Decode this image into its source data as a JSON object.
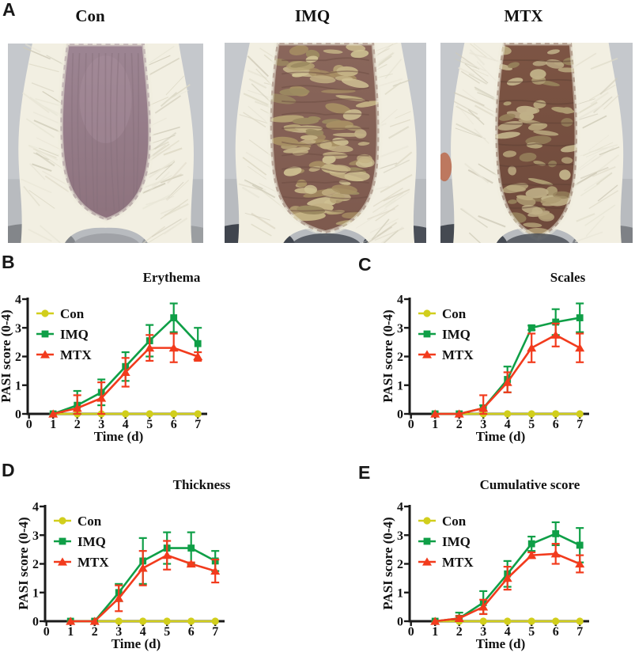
{
  "figure": {
    "panelA": {
      "label": "A",
      "photos": [
        {
          "title": "Con",
          "variant": "con"
        },
        {
          "title": "IMQ",
          "variant": "imq"
        },
        {
          "title": "MTX",
          "variant": "mtx"
        }
      ]
    }
  },
  "colors": {
    "con": "#d1ce1c",
    "imq": "#0f9f47",
    "mtx": "#f23b1d",
    "axis": "#1a1a1a",
    "text": "#111111"
  },
  "chart_data": [
    {
      "panel_label": "B",
      "type": "line",
      "title": "Erythema",
      "xlabel": "Time (d)",
      "ylabel": "PASI score (0-4)",
      "xlim": [
        0,
        7.5
      ],
      "ylim": [
        0,
        4
      ],
      "xticks": [
        0,
        1,
        2,
        3,
        4,
        5,
        6,
        7
      ],
      "yticks": [
        0,
        1,
        2,
        3,
        4
      ],
      "x": [
        1,
        2,
        3,
        4,
        5,
        6,
        7
      ],
      "legend_position": "top-left",
      "grid": false,
      "series": [
        {
          "name": "Con",
          "marker": "circle",
          "color": "#d1ce1c",
          "values": [
            0,
            0,
            0,
            0,
            0,
            0,
            0
          ],
          "errors": [
            0,
            0,
            0,
            0,
            0,
            0,
            0
          ]
        },
        {
          "name": "IMQ",
          "marker": "square",
          "color": "#0f9f47",
          "values": [
            0,
            0.3,
            0.75,
            1.65,
            2.55,
            3.35,
            2.45
          ],
          "errors": [
            0,
            0.5,
            0.45,
            0.5,
            0.55,
            0.5,
            0.55
          ]
        },
        {
          "name": "MTX",
          "marker": "triangle",
          "color": "#f23b1d",
          "values": [
            0,
            0.2,
            0.55,
            1.45,
            2.3,
            2.3,
            2.0
          ],
          "errors": [
            0,
            0.45,
            0.55,
            0.5,
            0.45,
            0.5,
            0.15
          ]
        }
      ]
    },
    {
      "panel_label": "C",
      "type": "line",
      "title": "Scales",
      "xlabel": "Time (d)",
      "ylabel": "PASI score (0-4)",
      "xlim": [
        0,
        7.5
      ],
      "ylim": [
        0,
        4
      ],
      "xticks": [
        0,
        1,
        2,
        3,
        4,
        5,
        6,
        7
      ],
      "yticks": [
        0,
        1,
        2,
        3,
        4
      ],
      "x": [
        1,
        2,
        3,
        4,
        5,
        6,
        7
      ],
      "legend_position": "top-left",
      "grid": false,
      "series": [
        {
          "name": "Con",
          "marker": "circle",
          "color": "#d1ce1c",
          "values": [
            0,
            0,
            0,
            0,
            0,
            0,
            0
          ],
          "errors": [
            0,
            0,
            0,
            0,
            0,
            0,
            0
          ]
        },
        {
          "name": "IMQ",
          "marker": "square",
          "color": "#0f9f47",
          "values": [
            0,
            0,
            0.2,
            1.2,
            3.0,
            3.2,
            3.35
          ],
          "errors": [
            0,
            0,
            0.1,
            0.45,
            0.08,
            0.45,
            0.5
          ]
        },
        {
          "name": "MTX",
          "marker": "triangle",
          "color": "#f23b1d",
          "values": [
            0,
            0,
            0.2,
            1.1,
            2.3,
            2.75,
            2.3
          ],
          "errors": [
            0,
            0,
            0.45,
            0.35,
            0.5,
            0.4,
            0.5
          ]
        }
      ]
    },
    {
      "panel_label": "D",
      "type": "line",
      "title": "Thickness",
      "xlabel": "Time (d)",
      "ylabel": "PASI score (0-4)",
      "xlim": [
        0,
        7.5
      ],
      "ylim": [
        0,
        4
      ],
      "xticks": [
        0,
        1,
        2,
        3,
        4,
        5,
        6,
        7
      ],
      "yticks": [
        0,
        1,
        2,
        3,
        4
      ],
      "x": [
        1,
        2,
        3,
        4,
        5,
        6,
        7
      ],
      "legend_position": "top-left",
      "grid": false,
      "series": [
        {
          "name": "Con",
          "marker": "circle",
          "color": "#d1ce1c",
          "values": [
            0,
            0,
            0,
            0,
            0,
            0,
            0
          ],
          "errors": [
            0,
            0,
            0,
            0,
            0,
            0,
            0
          ]
        },
        {
          "name": "IMQ",
          "marker": "square",
          "color": "#0f9f47",
          "values": [
            0,
            0,
            1.0,
            2.1,
            2.55,
            2.55,
            2.1
          ],
          "errors": [
            0,
            0,
            0.3,
            0.8,
            0.55,
            0.55,
            0.35
          ]
        },
        {
          "name": "MTX",
          "marker": "triangle",
          "color": "#f23b1d",
          "values": [
            0,
            0,
            0.8,
            1.85,
            2.3,
            2.0,
            1.75
          ],
          "errors": [
            0,
            0,
            0.45,
            0.6,
            0.5,
            0.05,
            0.4
          ]
        }
      ]
    },
    {
      "panel_label": "E",
      "type": "line",
      "title": "Cumulative score",
      "xlabel": "Time (d)",
      "ylabel": "PASI score (0-4)",
      "xlim": [
        0,
        7.5
      ],
      "ylim": [
        0,
        4
      ],
      "xticks": [
        0,
        1,
        2,
        3,
        4,
        5,
        6,
        7
      ],
      "yticks": [
        0,
        1,
        2,
        3,
        4
      ],
      "x": [
        1,
        2,
        3,
        4,
        5,
        6,
        7
      ],
      "legend_position": "top-left",
      "grid": false,
      "series": [
        {
          "name": "Con",
          "marker": "circle",
          "color": "#d1ce1c",
          "values": [
            0,
            0,
            0,
            0,
            0,
            0,
            0
          ],
          "errors": [
            0,
            0,
            0,
            0,
            0,
            0,
            0
          ]
        },
        {
          "name": "IMQ",
          "marker": "square",
          "color": "#0f9f47",
          "values": [
            0,
            0.1,
            0.65,
            1.65,
            2.7,
            3.05,
            2.65
          ],
          "errors": [
            0,
            0.2,
            0.4,
            0.45,
            0.25,
            0.4,
            0.6
          ]
        },
        {
          "name": "MTX",
          "marker": "triangle",
          "color": "#f23b1d",
          "values": [
            0,
            0.1,
            0.5,
            1.5,
            2.3,
            2.35,
            2.0
          ],
          "errors": [
            0,
            0.08,
            0.25,
            0.4,
            0.1,
            0.35,
            0.3
          ]
        }
      ]
    }
  ]
}
